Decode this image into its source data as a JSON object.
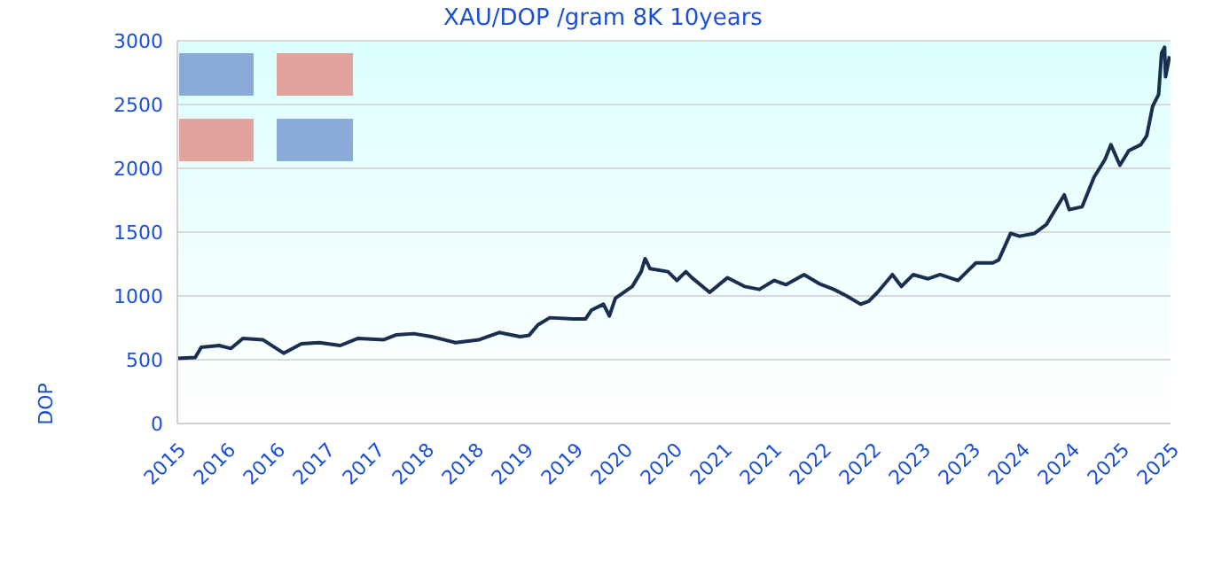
{
  "chart_data": {
    "type": "line",
    "title": "XAU/DOP /gram 8K 10years",
    "ylabel": "DOP",
    "x": [
      2015.5,
      2015.68,
      2015.74,
      2015.92,
      2016.04,
      2016.16,
      2016.36,
      2016.57,
      2016.75,
      2016.93,
      2017.14,
      2017.32,
      2017.58,
      2017.7,
      2017.88,
      2018.06,
      2018.3,
      2018.54,
      2018.74,
      2018.95,
      2019.04,
      2019.13,
      2019.25,
      2019.49,
      2019.61,
      2019.67,
      2019.79,
      2019.85,
      2019.91,
      2020.08,
      2020.17,
      2020.21,
      2020.26,
      2020.44,
      2020.53,
      2020.62,
      2020.68,
      2020.86,
      2021.04,
      2021.21,
      2021.36,
      2021.51,
      2021.63,
      2021.81,
      2021.96,
      2022.11,
      2022.23,
      2022.38,
      2022.46,
      2022.55,
      2022.7,
      2022.79,
      2022.91,
      2023.06,
      2023.18,
      2023.36,
      2023.54,
      2023.71,
      2023.77,
      2023.89,
      2023.98,
      2024.13,
      2024.25,
      2024.43,
      2024.48,
      2024.61,
      2024.73,
      2024.84,
      2024.9,
      2024.99,
      2025.08,
      2025.2,
      2025.26,
      2025.32,
      2025.38,
      2025.41,
      2025.44,
      2025.45,
      2025.49
    ],
    "series": [
      {
        "color": "#1a2e50",
        "values": [
          510,
          518,
          597,
          611,
          588,
          667,
          657,
          551,
          625,
          634,
          611,
          667,
          657,
          694,
          704,
          681,
          634,
          657,
          713,
          681,
          690,
          773,
          829,
          819,
          819,
          889,
          935,
          843,
          982,
          1074,
          1190,
          1292,
          1213,
          1190,
          1121,
          1190,
          1143,
          1028,
          1143,
          1074,
          1051,
          1121,
          1088,
          1167,
          1097,
          1051,
          1004,
          935,
          958,
          1028,
          1167,
          1074,
          1167,
          1134,
          1167,
          1121,
          1259,
          1259,
          1282,
          1490,
          1468,
          1490,
          1560,
          1792,
          1676,
          1699,
          1931,
          2069,
          2185,
          2024,
          2139,
          2185,
          2254,
          2486,
          2579,
          2903,
          2949,
          2718,
          2879
        ]
      }
    ],
    "xlim": [
      2015.5,
      2025.5
    ],
    "xticks": [
      {
        "value": 2015.5,
        "label": "2015"
      },
      {
        "value": 2016,
        "label": "2016"
      },
      {
        "value": 2016.5,
        "label": "2016"
      },
      {
        "value": 2017,
        "label": "2017"
      },
      {
        "value": 2017.5,
        "label": "2017"
      },
      {
        "value": 2018,
        "label": "2018"
      },
      {
        "value": 2018.5,
        "label": "2018"
      },
      {
        "value": 2019,
        "label": "2019"
      },
      {
        "value": 2019.5,
        "label": "2019"
      },
      {
        "value": 2020,
        "label": "2020"
      },
      {
        "value": 2020.5,
        "label": "2020"
      },
      {
        "value": 2021,
        "label": "2021"
      },
      {
        "value": 2021.5,
        "label": "2021"
      },
      {
        "value": 2022,
        "label": "2022"
      },
      {
        "value": 2022.5,
        "label": "2022"
      },
      {
        "value": 2023,
        "label": "2023"
      },
      {
        "value": 2023.5,
        "label": "2023"
      },
      {
        "value": 2024,
        "label": "2024"
      },
      {
        "value": 2024.5,
        "label": "2024"
      },
      {
        "value": 2025,
        "label": "2025"
      },
      {
        "value": 2025.5,
        "label": "2025"
      }
    ],
    "ylim": [
      0,
      3000
    ],
    "yticks": [
      0,
      500,
      1000,
      1500,
      2000,
      2500,
      3000
    ],
    "grid": "y",
    "legend": false,
    "marker": "none",
    "line_style": "solid"
  }
}
